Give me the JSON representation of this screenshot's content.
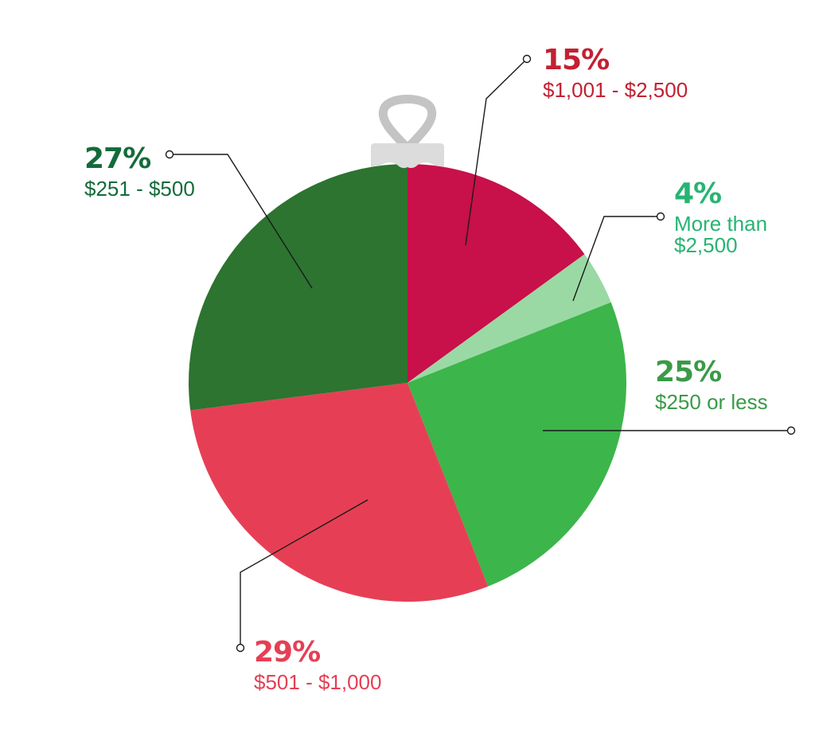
{
  "chart_data": {
    "type": "pie",
    "title": "",
    "start_angle_deg": 0,
    "direction": "clockwise",
    "center": [
      512,
      481
    ],
    "radius": 275,
    "slices": [
      {
        "label": "$1,001 - $2,500",
        "value": 15,
        "pct_label": "15%",
        "color": "#c8104a",
        "text_color": "#c32032"
      },
      {
        "label": "More than $2,500",
        "value": 4,
        "pct_label": "4%",
        "color": "#9ad9a4",
        "text_color": "#27b473"
      },
      {
        "label": "$250 or less",
        "value": 25,
        "pct_label": "25%",
        "color": "#3cb54b",
        "text_color": "#3a9a47"
      },
      {
        "label": "$501 - $1,000",
        "value": 29,
        "pct_label": "29%",
        "color": "#e63f55",
        "text_color": "#e63f55"
      },
      {
        "label": "$251 - $500",
        "value": 27,
        "pct_label": "27%",
        "color": "#2c7430",
        "text_color": "#136b3a"
      }
    ],
    "legend": "none",
    "decoration": "christmas-ornament-cap"
  },
  "labels": {
    "s15": {
      "pct": "15%",
      "range": "$1,001 - $2,500"
    },
    "s4": {
      "pct": "4%",
      "range_line1": "More than",
      "range_line2": "$2,500"
    },
    "s25": {
      "pct": "25%",
      "range": "$250 or less"
    },
    "s29": {
      "pct": "29%",
      "range": "$501 - $1,000"
    },
    "s27": {
      "pct": "27%",
      "range": "$251 - $500"
    }
  },
  "ornament": {
    "loop_color": "#c4c4c4",
    "cap_color": "#dcdcdc"
  }
}
